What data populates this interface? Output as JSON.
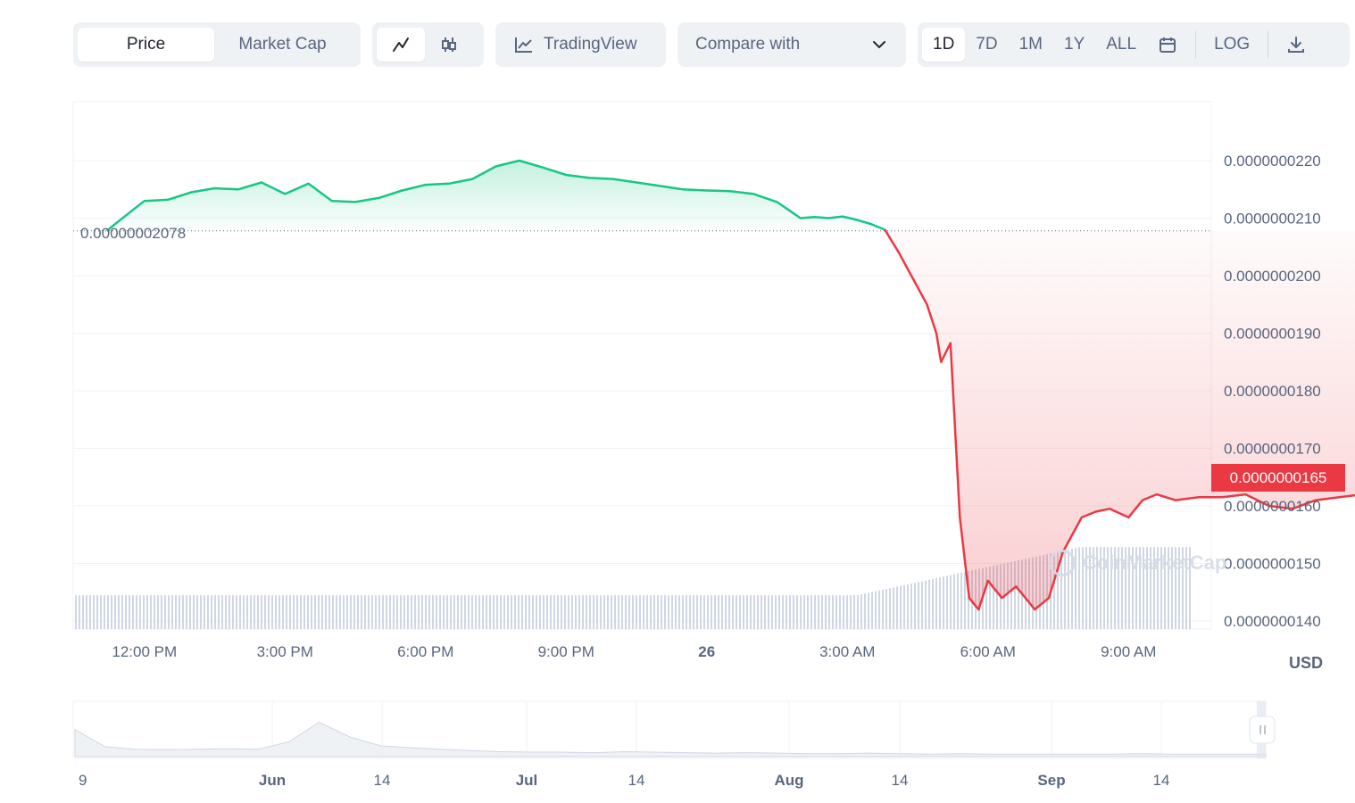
{
  "toolbar": {
    "metric_tabs": [
      {
        "label": "Price",
        "active": true
      },
      {
        "label": "Market Cap",
        "active": false
      }
    ],
    "chart_type_icons": [
      {
        "icon": "line-chart-icon",
        "active": true
      },
      {
        "icon": "candlestick-icon",
        "active": false
      }
    ],
    "tradingview": {
      "icon": "tradingview-chart-icon",
      "label": "TradingView"
    },
    "compare": {
      "label": "Compare with",
      "icon": "chevron-down-icon"
    },
    "ranges": [
      {
        "label": "1D",
        "active": true
      },
      {
        "label": "7D",
        "active": false
      },
      {
        "label": "1M",
        "active": false
      },
      {
        "label": "1Y",
        "active": false
      },
      {
        "label": "ALL",
        "active": false
      }
    ],
    "calendar_icon": "calendar-icon",
    "log_label": "LOG",
    "download_icon": "download-icon"
  },
  "currency": "USD",
  "reference_price_label": "0.00000002078",
  "current_price_label": "0.0000000165",
  "watermark": "CoinMarketCap",
  "colors": {
    "up": "#16c784",
    "down": "#ea3943",
    "grid": "#eff2f5",
    "volume": "#cfd6e4",
    "text": "#58667e"
  },
  "chart_data": [
    {
      "type": "line",
      "series": [
        {
          "x": [
            11.2,
            11.5,
            12.0,
            12.5,
            13.0,
            13.5,
            14.0,
            14.5,
            15.0,
            15.5,
            16.0,
            16.5,
            17.0,
            17.5,
            18.0,
            18.5,
            19.0,
            19.5,
            20.0,
            20.5,
            21.0,
            21.5,
            22.0,
            22.5,
            23.0,
            23.5,
            24.0,
            24.5,
            25.0,
            25.5,
            26.0,
            26.3,
            26.6,
            26.9,
            27.2,
            27.5,
            27.8,
            28.1,
            28.3,
            28.5,
            28.7,
            28.9,
            29.0,
            29.2,
            29.4,
            29.6,
            29.8,
            30.0,
            30.3,
            30.6,
            31.0,
            31.3,
            31.6,
            32.0,
            32.3,
            32.6,
            33.0,
            33.3,
            33.6,
            34.0,
            34.5,
            35.0,
            35.5,
            36.0,
            36.5,
            37.0,
            37.5,
            38.0,
            38.5,
            39.0,
            39.5,
            40.0,
            40.5,
            41.0,
            41.5
          ],
          "values": [
            2.078,
            2.098,
            2.13,
            2.132,
            2.145,
            2.152,
            2.15,
            2.162,
            2.142,
            2.16,
            2.13,
            2.128,
            2.135,
            2.148,
            2.158,
            2.16,
            2.168,
            2.19,
            2.2,
            2.188,
            2.175,
            2.17,
            2.168,
            2.162,
            2.156,
            2.15,
            2.148,
            2.147,
            2.142,
            2.128,
            2.1,
            2.102,
            2.1,
            2.103,
            2.097,
            2.09,
            2.08,
            2.04,
            2.01,
            1.98,
            1.95,
            1.9,
            1.85,
            1.883,
            1.58,
            1.44,
            1.42,
            1.47,
            1.44,
            1.46,
            1.42,
            1.44,
            1.52,
            1.58,
            1.59,
            1.595,
            1.58,
            1.61,
            1.62,
            1.61,
            1.615,
            1.615,
            1.62,
            1.6,
            1.595,
            1.61,
            1.615,
            1.62,
            1.63,
            1.64,
            1.645,
            1.66,
            1.655,
            1.65,
            1.65
          ],
          "color": "#16c784"
        }
      ],
      "x_tick_labels": [
        "12:00 PM",
        "3:00 PM",
        "6:00 PM",
        "9:00 PM",
        "26",
        "3:00 AM",
        "6:00 AM",
        "9:00 AM"
      ],
      "x_tick_values": [
        12,
        15,
        18,
        21,
        24,
        27,
        30,
        33
      ],
      "y_tick_labels": [
        "0.0000000220",
        "0.0000000210",
        "0.0000000200",
        "0.0000000190",
        "0.0000000180",
        "0.0000000170",
        "0.0000000160",
        "0.0000000150",
        "0.0000000140"
      ],
      "y_tick_values": [
        2.2,
        2.1,
        2.0,
        1.9,
        1.8,
        1.7,
        1.6,
        1.5,
        1.4
      ],
      "y_unit_note": "values in units of 1e-8 USD",
      "reference_value": 2.078,
      "grid": true,
      "volume_bars": {
        "start_level": 0.35,
        "end_level": 0.85
      }
    },
    {
      "type": "area",
      "x_tick_labels": [
        "9",
        "Jun",
        "14",
        "Jul",
        "14",
        "Aug",
        "14",
        "Sep",
        "14"
      ],
      "series": [
        {
          "values": [
            0.55,
            0.2,
            0.15,
            0.14,
            0.15,
            0.16,
            0.15,
            0.3,
            0.7,
            0.4,
            0.22,
            0.18,
            0.15,
            0.12,
            0.1,
            0.09,
            0.09,
            0.08,
            0.1,
            0.09,
            0.08,
            0.07,
            0.08,
            0.07,
            0.06,
            0.06,
            0.07,
            0.06,
            0.05,
            0.06,
            0.05,
            0.05,
            0.05,
            0.05,
            0.05,
            0.06,
            0.05,
            0.05,
            0.05,
            0.05
          ]
        }
      ]
    }
  ]
}
